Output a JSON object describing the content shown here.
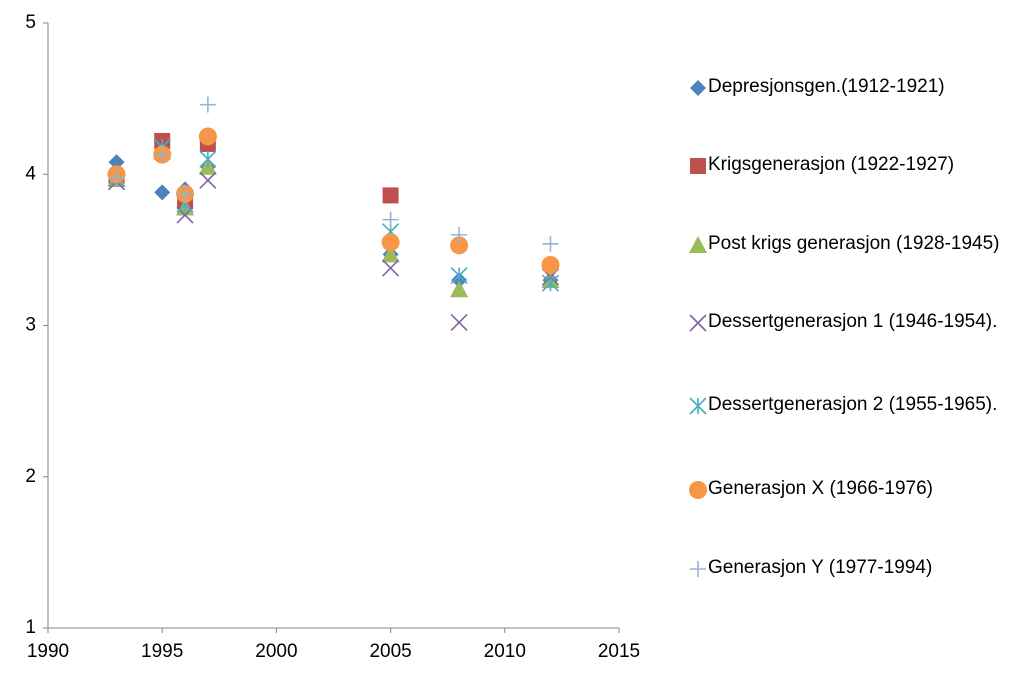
{
  "chart_data": {
    "type": "scatter",
    "x": [
      1993,
      1995,
      1996,
      1997,
      2005,
      2008,
      2012
    ],
    "series": [
      {
        "name": "Depresjonsgen.(1912-1921)",
        "color": "#4f81bd",
        "marker": "diamond",
        "values": [
          4.08,
          3.88,
          3.9,
          4.05,
          3.47,
          3.3,
          3.3
        ]
      },
      {
        "name": "Krigsgenerasjon (1922-1927)",
        "color": "#c0504d",
        "marker": "square",
        "values": [
          3.97,
          4.22,
          3.82,
          4.2,
          3.86,
          null,
          null
        ]
      },
      {
        "name": "Post krigs generasjon (1928-1945)",
        "color": "#9bbb59",
        "marker": "triangle",
        "values": [
          3.97,
          4.15,
          3.78,
          4.05,
          3.47,
          3.24,
          3.3
        ]
      },
      {
        "name": "Dessertgenerasjon 1  (1946-1954).",
        "color": "#8064a2",
        "marker": "x",
        "values": [
          3.95,
          4.17,
          3.73,
          3.96,
          3.38,
          3.02,
          3.32
        ]
      },
      {
        "name": "Dessertgenerasjon 2 (1955-1965).",
        "color": "#4bacc6",
        "marker": "star",
        "values": [
          3.97,
          4.18,
          3.8,
          4.1,
          3.62,
          3.33,
          3.28
        ]
      },
      {
        "name": "Generasjon X (1966-1976)",
        "color": "#f79646",
        "marker": "circle",
        "values": [
          4.0,
          4.13,
          3.87,
          4.25,
          3.55,
          3.53,
          3.4
        ]
      },
      {
        "name": "Generasjon Y (1977-1994)",
        "color": "#95b3d7",
        "marker": "plus",
        "values": [
          3.98,
          4.13,
          3.87,
          4.46,
          3.7,
          3.6,
          3.54
        ]
      }
    ],
    "xlim": [
      1990,
      2015
    ],
    "xticks": [
      1990,
      1995,
      2000,
      2005,
      2010,
      2015
    ],
    "ylim": [
      1,
      5
    ],
    "yticks": [
      1,
      2,
      3,
      4,
      5
    ]
  }
}
